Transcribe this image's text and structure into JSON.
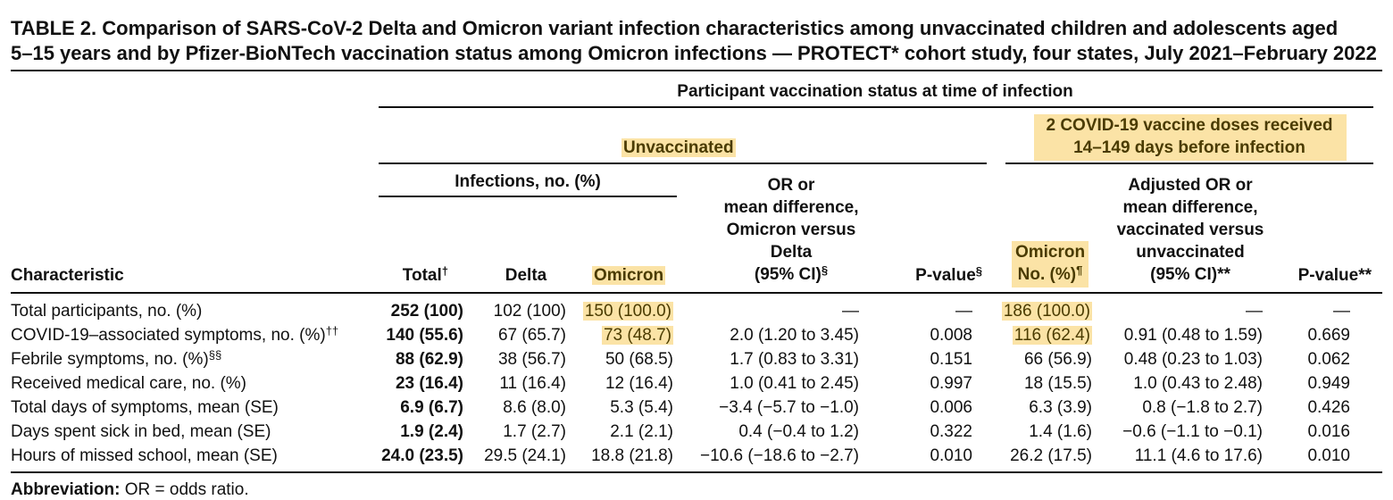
{
  "title": {
    "line1": "TABLE 2. Comparison of SARS-CoV-2 Delta and Omicron variant infection characteristics among unvaccinated children and adolescents aged",
    "line2": "5–15 years and by Pfizer-BioNTech vaccination status among Omicron infections — PROTECT* cohort study, four states, July 2021–February 2022"
  },
  "header": {
    "participant_status": "Participant vaccination status at time of infection",
    "unvaccinated": "Unvaccinated",
    "vaccinated_line1": "2 COVID-19 vaccine doses received",
    "vaccinated_line2": "14–149 days before infection",
    "infections": "Infections, no. (%)",
    "or_line1": "OR or",
    "or_line2": "mean difference,",
    "or_line3": "Omicron versus",
    "or_line4": "Delta",
    "or_line5": "(95% CI)",
    "or_sup": "§",
    "characteristic": "Characteristic",
    "total": "Total",
    "total_sup": "†",
    "delta": "Delta",
    "omicron": "Omicron",
    "pvalue": "P-value",
    "pvalue_sup": "§",
    "omicron_vax_line1": "Omicron",
    "omicron_vax_line2": "No. (%)",
    "omicron_vax_sup": "¶",
    "adj_line1": "Adjusted OR or",
    "adj_line2": "mean difference,",
    "adj_line3": "vaccinated versus",
    "adj_line4": "unvaccinated",
    "adj_line5": "(95% CI)**",
    "pvalue2": "P-value**"
  },
  "rows": [
    {
      "characteristic": "Total participants, no. (%)",
      "sup": "",
      "total": "252 (100)",
      "delta": "102 (100)",
      "omicron": "150 (100.0)",
      "or": "—",
      "p": "—",
      "omicron_vax": "186 (100.0)",
      "adj": "—",
      "p2": "—"
    },
    {
      "characteristic": "COVID-19–associated symptoms, no. (%)",
      "sup": "††",
      "total": "140 (55.6)",
      "delta": "67 (65.7)",
      "omicron": "73 (48.7)",
      "or": "2.0 (1.20 to 3.45)",
      "p": "0.008",
      "omicron_vax": "116 (62.4)",
      "adj": "0.91 (0.48 to 1.59)",
      "p2": "0.669"
    },
    {
      "characteristic": "Febrile symptoms, no. (%)",
      "sup": "§§",
      "total": "88 (62.9)",
      "delta": "38 (56.7)",
      "omicron": "50 (68.5)",
      "or": "1.7 (0.83 to 3.31)",
      "p": "0.151",
      "omicron_vax": "66 (56.9)",
      "adj": "0.48 (0.23 to 1.03)",
      "p2": "0.062"
    },
    {
      "characteristic": "Received medical care, no. (%)",
      "sup": "",
      "total": "23 (16.4)",
      "delta": "11 (16.4)",
      "omicron": "12 (16.4)",
      "or": "1.0 (0.41 to 2.45)",
      "p": "0.997",
      "omicron_vax": "18 (15.5)",
      "adj": "1.0 (0.43 to 2.48)",
      "p2": "0.949"
    },
    {
      "characteristic": "Total days of symptoms, mean (SE)",
      "sup": "",
      "total": "6.9 (6.7)",
      "delta": "8.6 (8.0)",
      "omicron": "5.3 (5.4)",
      "or": "−3.4 (−5.7 to −1.0)",
      "p": "0.006",
      "omicron_vax": "6.3 (3.9)",
      "adj": "0.8 (−1.8 to 2.7)",
      "p2": "0.426"
    },
    {
      "characteristic": "Days spent sick in bed, mean (SE)",
      "sup": "",
      "total": "1.9 (2.4)",
      "delta": "1.7 (2.7)",
      "omicron": "2.1 (2.1)",
      "or": "0.4 (−0.4 to 1.2)",
      "p": "0.322",
      "omicron_vax": "1.4 (1.6)",
      "adj": "−0.6 (−1.1 to −0.1)",
      "p2": "0.016"
    },
    {
      "characteristic": "Hours of missed school, mean (SE)",
      "sup": "",
      "total": "24.0 (23.5)",
      "delta": "29.5 (24.1)",
      "omicron": "18.8 (21.8)",
      "or": "−10.6 (−18.6 to −2.7)",
      "p": "0.010",
      "omicron_vax": "26.2 (17.5)",
      "adj": "11.1 (4.6 to 17.6)",
      "p2": "0.010"
    }
  ],
  "footer": {
    "label": "Abbreviation:",
    "text": " OR = odds ratio."
  },
  "colors": {
    "highlight": "#fbe3a6",
    "highlight_text": "#4a3b00",
    "text": "#111111"
  }
}
